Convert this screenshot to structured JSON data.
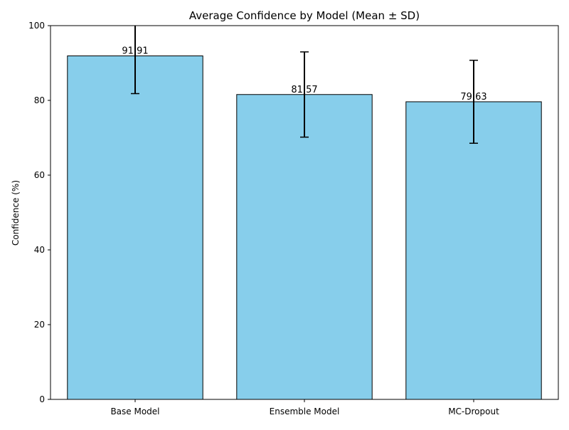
{
  "chart_data": {
    "type": "bar",
    "title": "Average Confidence by Model (Mean ± SD)",
    "xlabel": "",
    "ylabel": "Confidence (%)",
    "categories": [
      "Base Model",
      "Ensemble Model",
      "MC-Dropout"
    ],
    "values": [
      91.91,
      81.57,
      79.63
    ],
    "value_labels": [
      "91.91",
      "81.57",
      "79.63"
    ],
    "errors": [
      10.1,
      11.4,
      11.1
    ],
    "ylim": [
      0,
      100
    ],
    "yticks": [
      0,
      20,
      40,
      60,
      80,
      100
    ],
    "grid": false,
    "legend": "none",
    "bar_color": "#87ceeb",
    "bar_edge_color": "#000000"
  }
}
